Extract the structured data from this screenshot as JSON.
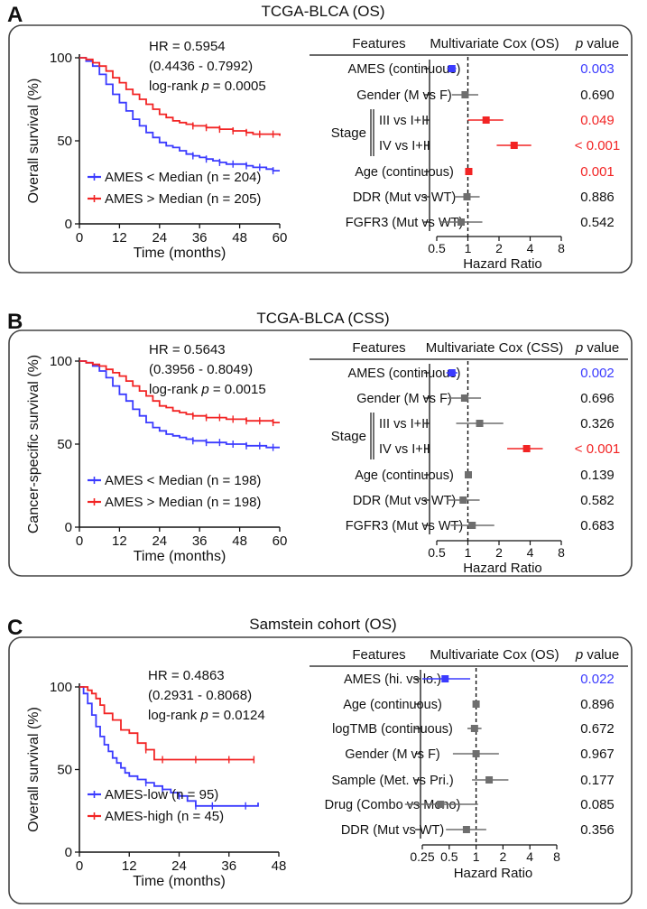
{
  "colors": {
    "blue": "#3b3bff",
    "red": "#f22424",
    "gray": "#6e6e6e",
    "black": "#111111",
    "frame": "#444444"
  },
  "shared": {
    "features_header": "Features",
    "pvalue_p": "p",
    "pvalue_rest": " value",
    "hr_axis_label": "Hazard Ratio",
    "km_xlabel": "Time (months)",
    "stage_label": "Stage"
  },
  "panels": [
    {
      "letter": "A",
      "title": "TCGA-BLCA (OS)",
      "km": {
        "ylabel": "Overall survival (%)",
        "hr_line": "HR = 0.5954",
        "ci_line": "(0.4436 - 0.7992)",
        "logrank_prefix": "log-rank ",
        "logrank_p": "p",
        "logrank_value": " = 0.0005",
        "legend": [
          {
            "label": "AMES < Median (n = 204)",
            "color": "blue"
          },
          {
            "label": "AMES > Median (n = 205)",
            "color": "red"
          }
        ]
      },
      "forest_header": "Multivariate Cox (OS)",
      "forest_rows": [
        {
          "feature": "AMES (continuous)",
          "p": "0.003",
          "p_color": "blue",
          "hr": 0.7,
          "lo": 0.63,
          "hi": 0.77,
          "mark_color": "blue"
        },
        {
          "feature": "Gender (M vs F)",
          "p": "0.690",
          "p_color": "black",
          "hr": 0.94,
          "lo": 0.7,
          "hi": 1.26,
          "mark_color": "gray"
        },
        {
          "feature": "III vs I+II",
          "p": "0.049",
          "p_color": "red",
          "hr": 1.5,
          "lo": 1.0,
          "hi": 2.2,
          "mark_color": "red",
          "stage": true
        },
        {
          "feature": "IV vs I+II",
          "p": "< 0.001",
          "p_color": "red",
          "hr": 2.8,
          "lo": 1.9,
          "hi": 4.1,
          "mark_color": "red",
          "stage": true
        },
        {
          "feature": "Age (continuous)",
          "p": "0.001",
          "p_color": "red",
          "hr": 1.02,
          "lo": 1.01,
          "hi": 1.03,
          "mark_color": "red"
        },
        {
          "feature": "DDR (Mut vs WT)",
          "p": "0.886",
          "p_color": "black",
          "hr": 0.98,
          "lo": 0.74,
          "hi": 1.3,
          "mark_color": "gray"
        },
        {
          "feature": "FGFR3 (Mut vs WT)",
          "p": "0.542",
          "p_color": "black",
          "hr": 0.86,
          "lo": 0.54,
          "hi": 1.38,
          "mark_color": "gray"
        }
      ]
    },
    {
      "letter": "B",
      "title": "TCGA-BLCA (CSS)",
      "km": {
        "ylabel": "Cancer-specific survival (%)",
        "hr_line": "HR = 0.5643",
        "ci_line": "(0.3956 - 0.8049)",
        "logrank_prefix": "log-rank ",
        "logrank_p": "p",
        "logrank_value": " = 0.0015",
        "legend": [
          {
            "label": "AMES < Median (n = 198)",
            "color": "blue"
          },
          {
            "label": "AMES > Median (n = 198)",
            "color": "red"
          }
        ]
      },
      "forest_header": "Multivariate Cox (CSS)",
      "forest_rows": [
        {
          "feature": "AMES (continuous)",
          "p": "0.002",
          "p_color": "blue",
          "hr": 0.7,
          "lo": 0.62,
          "hi": 0.79,
          "mark_color": "blue"
        },
        {
          "feature": "Gender (M vs F)",
          "p": "0.696",
          "p_color": "black",
          "hr": 0.93,
          "lo": 0.64,
          "hi": 1.34,
          "mark_color": "gray"
        },
        {
          "feature": "III vs I+II",
          "p": "0.326",
          "p_color": "black",
          "hr": 1.3,
          "lo": 0.77,
          "hi": 2.2,
          "mark_color": "gray",
          "stage": true
        },
        {
          "feature": "IV vs I+II",
          "p": "< 0.001",
          "p_color": "red",
          "hr": 3.7,
          "lo": 2.4,
          "hi": 5.3,
          "mark_color": "red",
          "stage": true
        },
        {
          "feature": "Age (continuous)",
          "p": "0.139",
          "p_color": "black",
          "hr": 1.01,
          "lo": 0.99,
          "hi": 1.03,
          "mark_color": "gray"
        },
        {
          "feature": "DDR (Mut vs WT)",
          "p": "0.582",
          "p_color": "black",
          "hr": 0.9,
          "lo": 0.63,
          "hi": 1.3,
          "mark_color": "gray"
        },
        {
          "feature": "FGFR3 (Mut vs WT)",
          "p": "0.683",
          "p_color": "black",
          "hr": 1.1,
          "lo": 0.68,
          "hi": 1.8,
          "mark_color": "gray"
        }
      ]
    },
    {
      "letter": "C",
      "title": "Samstein  cohort (OS)",
      "km": {
        "ylabel": "Overall survival (%)",
        "hr_line": "HR = 0.4863",
        "ci_line": "(0.2931 - 0.8068)",
        "logrank_prefix": "log-rank ",
        "logrank_p": "p",
        "logrank_value": " = 0.0124",
        "legend": [
          {
            "label": "AMES-low (n = 95)",
            "color": "blue"
          },
          {
            "label": "AMES-high (n = 45)",
            "color": "red"
          }
        ]
      },
      "forest_header": "Multivariate Cox (OS)",
      "forest_rows": [
        {
          "feature": "AMES (hi. vs lo.)",
          "p": "0.022",
          "p_color": "blue",
          "hr": 0.45,
          "lo": 0.25,
          "hi": 0.86,
          "mark_color": "blue"
        },
        {
          "feature": "Age (continuous)",
          "p": "0.896",
          "p_color": "black",
          "hr": 1.0,
          "lo": 0.98,
          "hi": 1.02,
          "mark_color": "gray"
        },
        {
          "feature": "logTMB (continuous)",
          "p": "0.672",
          "p_color": "black",
          "hr": 0.96,
          "lo": 0.8,
          "hi": 1.15,
          "mark_color": "gray"
        },
        {
          "feature": "Gender (M vs F)",
          "p": "0.967",
          "p_color": "black",
          "hr": 1.0,
          "lo": 0.55,
          "hi": 1.8,
          "mark_color": "gray"
        },
        {
          "feature": "Sample (Met. vs Pri.)",
          "p": "0.177",
          "p_color": "black",
          "hr": 1.4,
          "lo": 0.9,
          "hi": 2.3,
          "mark_color": "gray"
        },
        {
          "feature": "Drug (Combo vs Mono)",
          "p": "0.085",
          "p_color": "black",
          "hr": 0.4,
          "lo": 0.16,
          "hi": 1.05,
          "mark_color": "gray"
        },
        {
          "feature": "DDR (Mut vs WT)",
          "p": "0.356",
          "p_color": "black",
          "hr": 0.78,
          "lo": 0.46,
          "hi": 1.3,
          "mark_color": "gray"
        }
      ]
    }
  ],
  "chart_data": [
    {
      "type": "line",
      "title": "TCGA-BLCA (OS) – Kaplan-Meier",
      "xlabel": "Time (months)",
      "ylabel": "Overall survival (%)",
      "xlim": [
        0,
        60
      ],
      "ylim": [
        0,
        100
      ],
      "xticks": [
        0,
        12,
        24,
        36,
        48,
        60
      ],
      "yticks": [
        0,
        50,
        100
      ],
      "series": [
        {
          "name": "AMES < Median (n = 204)",
          "color": "blue",
          "x": [
            0,
            2,
            4,
            6,
            8,
            10,
            12,
            14,
            16,
            18,
            20,
            22,
            24,
            26,
            28,
            30,
            32,
            34,
            36,
            38,
            40,
            42,
            44,
            46,
            48,
            50,
            52,
            54,
            56,
            58,
            60
          ],
          "y": [
            100,
            98,
            95,
            90,
            84,
            78,
            73,
            68,
            63,
            59,
            55,
            52,
            49,
            47,
            46,
            44,
            42,
            41,
            40,
            39,
            38,
            37,
            36,
            36,
            36,
            35,
            34,
            34,
            33,
            32,
            32
          ]
        },
        {
          "name": "AMES > Median (n = 205)",
          "color": "red",
          "x": [
            0,
            2,
            4,
            6,
            8,
            10,
            12,
            14,
            16,
            18,
            20,
            22,
            24,
            26,
            28,
            30,
            32,
            34,
            36,
            38,
            40,
            42,
            44,
            46,
            48,
            50,
            52,
            54,
            56,
            58,
            60
          ],
          "y": [
            100,
            99,
            97,
            95,
            92,
            88,
            85,
            81,
            78,
            75,
            72,
            69,
            66,
            64,
            62,
            61,
            60,
            59,
            59,
            58,
            58,
            57,
            57,
            56,
            56,
            55,
            54,
            54,
            54,
            54,
            53
          ]
        }
      ]
    },
    {
      "type": "scatter",
      "title": "TCGA-BLCA (OS) – Multivariate Cox (OS)",
      "xlabel": "Hazard Ratio",
      "xscale": "log2",
      "xlim": [
        0.5,
        8
      ],
      "xticks": [
        0.5,
        1,
        2,
        4,
        8
      ],
      "reference": 1,
      "categories": [
        "AMES (continuous)",
        "Gender (M vs F)",
        "Stage III vs I+II",
        "Stage IV vs I+II",
        "Age (continuous)",
        "DDR (Mut vs WT)",
        "FGFR3 (Mut vs WT)"
      ],
      "hr": [
        0.7,
        0.94,
        1.5,
        2.8,
        1.02,
        0.98,
        0.86
      ],
      "p_values": [
        "0.003",
        "0.690",
        "0.049",
        "< 0.001",
        "0.001",
        "0.886",
        "0.542"
      ]
    },
    {
      "type": "line",
      "title": "TCGA-BLCA (CSS) – Kaplan-Meier",
      "xlabel": "Time (months)",
      "ylabel": "Cancer-specific survival (%)",
      "xlim": [
        0,
        60
      ],
      "ylim": [
        0,
        100
      ],
      "xticks": [
        0,
        12,
        24,
        36,
        48,
        60
      ],
      "yticks": [
        0,
        50,
        100
      ],
      "series": [
        {
          "name": "AMES < Median (n = 198)",
          "color": "blue",
          "x": [
            0,
            2,
            4,
            6,
            8,
            10,
            12,
            14,
            16,
            18,
            20,
            22,
            24,
            26,
            28,
            30,
            32,
            34,
            36,
            38,
            40,
            42,
            44,
            46,
            48,
            50,
            52,
            54,
            56,
            58,
            60
          ],
          "y": [
            100,
            99,
            97,
            94,
            90,
            85,
            80,
            76,
            71,
            67,
            63,
            60,
            58,
            56,
            55,
            54,
            53,
            52,
            52,
            51,
            51,
            51,
            50,
            50,
            50,
            49,
            49,
            49,
            48,
            48,
            48
          ]
        },
        {
          "name": "AMES > Median (n = 198)",
          "color": "red",
          "x": [
            0,
            2,
            4,
            6,
            8,
            10,
            12,
            14,
            16,
            18,
            20,
            22,
            24,
            26,
            28,
            30,
            32,
            34,
            36,
            38,
            40,
            42,
            44,
            46,
            48,
            50,
            52,
            54,
            56,
            58,
            60
          ],
          "y": [
            100,
            99,
            98,
            97,
            95,
            93,
            91,
            88,
            85,
            82,
            79,
            76,
            73,
            72,
            70,
            69,
            68,
            67,
            67,
            66,
            66,
            66,
            65,
            65,
            65,
            64,
            64,
            64,
            64,
            63,
            63
          ]
        }
      ]
    },
    {
      "type": "scatter",
      "title": "TCGA-BLCA (CSS) – Multivariate Cox (CSS)",
      "xlabel": "Hazard Ratio",
      "xscale": "log2",
      "xlim": [
        0.5,
        8
      ],
      "xticks": [
        0.5,
        1,
        2,
        4,
        8
      ],
      "reference": 1,
      "categories": [
        "AMES (continuous)",
        "Gender (M vs F)",
        "Stage III vs I+II",
        "Stage IV vs I+II",
        "Age (continuous)",
        "DDR (Mut vs WT)",
        "FGFR3 (Mut vs WT)"
      ],
      "hr": [
        0.7,
        0.93,
        1.3,
        3.7,
        1.01,
        0.9,
        1.1
      ],
      "p_values": [
        "0.002",
        "0.696",
        "0.326",
        "< 0.001",
        "0.139",
        "0.582",
        "0.683"
      ]
    },
    {
      "type": "line",
      "title": "Samstein cohort (OS) – Kaplan-Meier",
      "xlabel": "Time (months)",
      "ylabel": "Overall survival (%)",
      "xlim": [
        0,
        48
      ],
      "ylim": [
        0,
        100
      ],
      "xticks": [
        0,
        12,
        24,
        36,
        48
      ],
      "yticks": [
        0,
        50,
        100
      ],
      "series": [
        {
          "name": "AMES-low (n = 95)",
          "color": "blue",
          "x": [
            0,
            1,
            2,
            3,
            4,
            5,
            6,
            7,
            8,
            9,
            10,
            11,
            12,
            14,
            16,
            18,
            20,
            22,
            24,
            26,
            28,
            30,
            32,
            36,
            40,
            43
          ],
          "y": [
            100,
            96,
            90,
            83,
            76,
            70,
            65,
            61,
            57,
            54,
            51,
            48,
            46,
            44,
            42,
            40,
            38,
            36,
            34,
            31,
            28,
            28,
            28,
            28,
            28,
            30
          ]
        },
        {
          "name": "AMES-high (n = 45)",
          "color": "red",
          "x": [
            0,
            1,
            2,
            3,
            4,
            5,
            6,
            8,
            10,
            12,
            14,
            16,
            18,
            20,
            24,
            28,
            32,
            36,
            40,
            42
          ],
          "y": [
            100,
            100,
            98,
            96,
            93,
            89,
            84,
            80,
            74,
            72,
            66,
            62,
            56,
            56,
            56,
            56,
            56,
            56,
            56,
            56
          ]
        }
      ]
    },
    {
      "type": "scatter",
      "title": "Samstein cohort (OS) – Multivariate Cox (OS)",
      "xlabel": "Hazard Ratio",
      "xscale": "log2",
      "xlim": [
        0.25,
        8
      ],
      "xticks": [
        0.25,
        0.5,
        1,
        2,
        4,
        8
      ],
      "reference": 1,
      "categories": [
        "AMES (hi. vs lo.)",
        "Age (continuous)",
        "logTMB (continuous)",
        "Gender (M vs F)",
        "Sample (Met. vs Pri.)",
        "Drug (Combo vs Mono)",
        "DDR (Mut vs WT)"
      ],
      "hr": [
        0.45,
        1.0,
        0.96,
        1.0,
        1.4,
        0.4,
        0.78
      ],
      "p_values": [
        "0.022",
        "0.896",
        "0.672",
        "0.967",
        "0.177",
        "0.085",
        "0.356"
      ]
    }
  ]
}
